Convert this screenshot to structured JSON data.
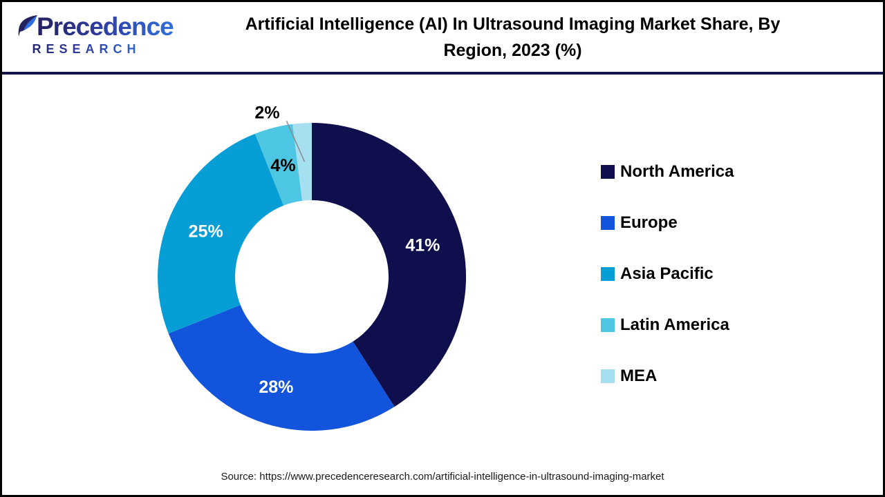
{
  "header": {
    "logo_name": "Precedence",
    "logo_sub": "RESEARCH",
    "title_line1": "Artificial Intelligence (AI) In Ultrasound Imaging Market Share, By",
    "title_line2": "Region, 2023 (%)"
  },
  "chart_data": {
    "type": "pie",
    "donut": true,
    "title": "Artificial Intelligence (AI) In Ultrasound Imaging Market Share, By Region, 2023 (%)",
    "categories": [
      "North America",
      "Europe",
      "Asia Pacific",
      "Latin America",
      "MEA"
    ],
    "values": [
      41,
      28,
      25,
      4,
      2
    ],
    "unit": "%",
    "colors": [
      "#0F0F4D",
      "#1254DB",
      "#069ED5",
      "#4CC6E2",
      "#A6DFEF"
    ],
    "slice_labels": [
      "41%",
      "28%",
      "25%",
      "4%",
      "2%"
    ],
    "slice_label_colors": [
      "#ffffff",
      "#ffffff",
      "#ffffff",
      "#000000",
      "#000000"
    ],
    "slice_label_placement": [
      "inside",
      "inside",
      "inside",
      "inside",
      "outside"
    ],
    "start_angle_deg": 0,
    "legend_position": "right"
  },
  "footer": {
    "source": "Source: https://www.precedenceresearch.com/artificial-intelligence-in-ultrasound-imaging-market"
  },
  "colors": {
    "divider": "#15154B",
    "page_border": "#000000",
    "leader_line": "#8a8a8a",
    "title_color": "#000000"
  }
}
